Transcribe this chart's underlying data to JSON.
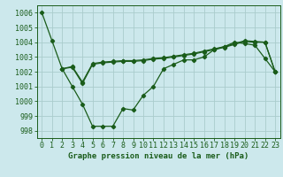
{
  "background_color": "#cce8ec",
  "grid_color": "#aacccc",
  "line_color": "#1a5c1a",
  "xlabel": "Graphe pression niveau de la mer (hPa)",
  "xlabel_fontsize": 6.5,
  "tick_fontsize": 6,
  "xlim": [
    -0.5,
    23.5
  ],
  "ylim": [
    997.5,
    1006.5
  ],
  "yticks": [
    998,
    999,
    1000,
    1001,
    1002,
    1003,
    1004,
    1005,
    1006
  ],
  "xticks": [
    0,
    1,
    2,
    3,
    4,
    5,
    6,
    7,
    8,
    9,
    10,
    11,
    12,
    13,
    14,
    15,
    16,
    17,
    18,
    19,
    20,
    21,
    22,
    23
  ],
  "series1_x": [
    0,
    1,
    2,
    3,
    4,
    5,
    6,
    7,
    8,
    9,
    10,
    11,
    12,
    13,
    14,
    15,
    16,
    17,
    18,
    19,
    20,
    21,
    22,
    23
  ],
  "series1_y": [
    1006.0,
    1004.1,
    1002.2,
    1001.0,
    999.8,
    998.3,
    998.3,
    998.3,
    999.5,
    999.4,
    1000.4,
    1001.0,
    1002.2,
    1002.5,
    1002.8,
    1002.8,
    1003.0,
    1003.5,
    1003.7,
    1004.0,
    1003.9,
    1003.8,
    1002.9,
    1002.0
  ],
  "series2_x": [
    2,
    3,
    4,
    5,
    6,
    7,
    8,
    9,
    10,
    11,
    12,
    13,
    14,
    15,
    16,
    17,
    18,
    19,
    20,
    21,
    22,
    23
  ],
  "series2_y": [
    1002.2,
    1002.3,
    1001.2,
    1002.5,
    1002.6,
    1002.65,
    1002.7,
    1002.7,
    1002.75,
    1002.85,
    1002.9,
    1003.0,
    1003.1,
    1003.2,
    1003.35,
    1003.5,
    1003.65,
    1003.85,
    1004.05,
    1004.0,
    1004.0,
    1002.0
  ],
  "series3_x": [
    2,
    3,
    4,
    5,
    6,
    7,
    8,
    9,
    10,
    11,
    12,
    13,
    14,
    15,
    16,
    17,
    18,
    19,
    20,
    21,
    22,
    23
  ],
  "series3_y": [
    1002.2,
    1002.35,
    1001.3,
    1002.55,
    1002.65,
    1002.7,
    1002.75,
    1002.75,
    1002.8,
    1002.9,
    1002.95,
    1003.05,
    1003.15,
    1003.25,
    1003.4,
    1003.55,
    1003.7,
    1003.9,
    1004.1,
    1004.05,
    1004.0,
    1002.0
  ]
}
